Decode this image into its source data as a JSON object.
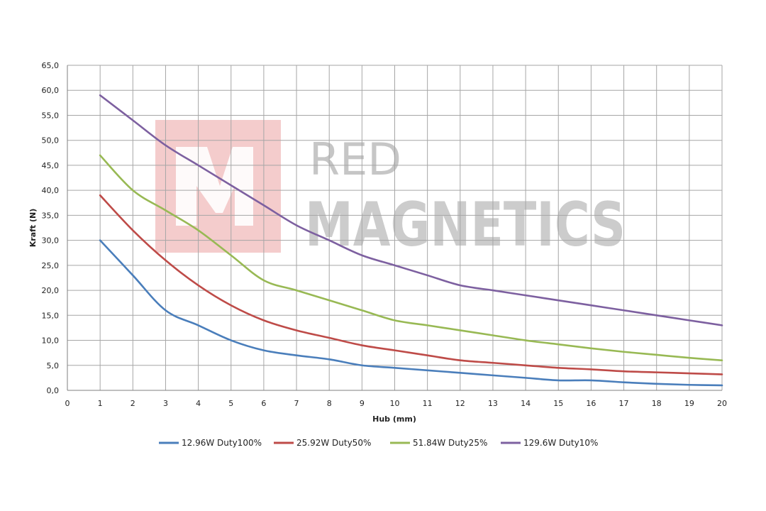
{
  "chart_data": {
    "type": "line",
    "title": "",
    "xlabel": "Hub (mm)",
    "ylabel": "Kraft (N)",
    "xlim": [
      0,
      20
    ],
    "ylim": [
      0,
      65
    ],
    "x_ticks": [
      "0",
      "1",
      "2",
      "3",
      "4",
      "5",
      "6",
      "7",
      "8",
      "9",
      "10",
      "11",
      "12",
      "13",
      "14",
      "15",
      "16",
      "17",
      "18",
      "19",
      "20"
    ],
    "y_ticks": [
      "0,0",
      "5,0",
      "10,0",
      "15,0",
      "20,0",
      "25,0",
      "30,0",
      "35,0",
      "40,0",
      "45,0",
      "50,0",
      "55,0",
      "60,0",
      "65,0"
    ],
    "grid": true,
    "legend_position": "bottom",
    "x": [
      1,
      2,
      3,
      4,
      5,
      6,
      7,
      8,
      9,
      10,
      11,
      12,
      13,
      14,
      15,
      16,
      17,
      18,
      19,
      20
    ],
    "series": [
      {
        "name": "12.96W Duty100%",
        "color": "#4a7ebb",
        "values": [
          30,
          23,
          16,
          13,
          10,
          8,
          7,
          6.2,
          5,
          4.5,
          4,
          3.5,
          3,
          2.5,
          2,
          2,
          1.6,
          1.3,
          1.1,
          1
        ]
      },
      {
        "name": "25.92W Duty50%",
        "color": "#be4b48",
        "values": [
          39,
          32,
          26,
          21,
          17,
          14,
          12,
          10.5,
          9,
          8,
          7,
          6,
          5.5,
          5,
          4.5,
          4.2,
          3.8,
          3.6,
          3.4,
          3.2
        ]
      },
      {
        "name": "51.84W Duty25%",
        "color": "#98b954",
        "values": [
          47,
          40,
          36,
          32,
          27,
          22,
          20,
          18,
          16,
          14,
          13,
          12,
          11,
          10,
          9.2,
          8.4,
          7.7,
          7.1,
          6.5,
          6
        ]
      },
      {
        "name": "129.6W Duty10%",
        "color": "#7d60a0",
        "values": [
          59,
          54,
          49,
          45,
          41,
          37,
          33,
          30,
          27,
          25,
          23,
          21,
          20,
          19,
          18,
          17,
          16,
          15,
          14,
          13
        ]
      }
    ]
  },
  "watermark": {
    "logo_letter": "M",
    "line1": "RED",
    "line2": "MAGNETICS",
    "logo_color": "#f2c5c5"
  }
}
